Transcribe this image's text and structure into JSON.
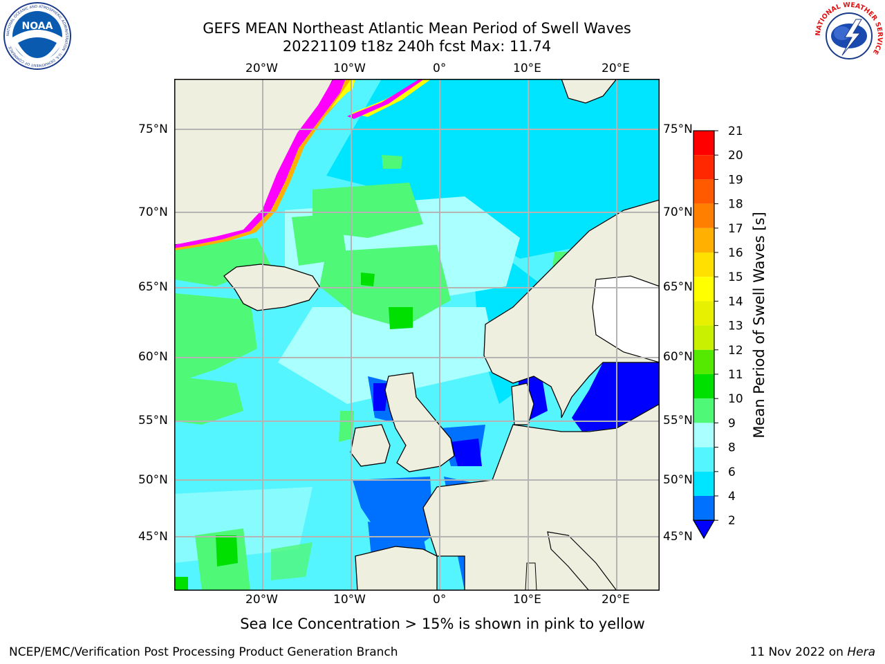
{
  "title": {
    "line1": "GEFS MEAN Northeast Atlantic Mean Period of Swell Waves",
    "line2": "20221109 t18z 240h fcst   Max: 11.74"
  },
  "axes": {
    "lon_labels": [
      "20°W",
      "10°W",
      "0°",
      "10°E",
      "20°E"
    ],
    "lat_labels_left": [
      "75°N",
      "70°N",
      "65°N",
      "60°N",
      "55°N",
      "50°N",
      "45°N"
    ],
    "lat_labels_right": [
      "75°N",
      "70°N",
      "65°N",
      "60°N",
      "55°N",
      "50°N",
      "45°N"
    ]
  },
  "colorbar": {
    "label": "Mean Period of Swell Waves [s]",
    "ticks": [
      "2",
      "4",
      "6",
      "8",
      "9",
      "10",
      "11",
      "12",
      "13",
      "14",
      "15",
      "16",
      "17",
      "18",
      "19",
      "20",
      "21"
    ],
    "colors": [
      "#0000ff",
      "#0070ff",
      "#00e5ff",
      "#55f5ff",
      "#aaffff",
      "#50f878",
      "#00e000",
      "#55e800",
      "#c8f000",
      "#e6f000",
      "#ffff00",
      "#ffe000",
      "#ffb000",
      "#ff8000",
      "#ff5a00",
      "#ff2800",
      "#ff0000"
    ]
  },
  "note": "Sea Ice Concentration > 15% is shown in pink to yellow",
  "footer": {
    "left": "NCEP/EMC/Verification Post Processing Product Generation Branch",
    "right_date": "11 Nov 2022 on ",
    "right_host": "Hera"
  },
  "logos": {
    "noaa_text": "NOAA",
    "noaa_ring": "NATIONAL OCEANIC AND ATMOSPHERIC ADMINISTRATION · U.S. DEPARTMENT OF COMMERCE",
    "nws_ring": "NATIONAL WEATHER SERVICE"
  }
}
